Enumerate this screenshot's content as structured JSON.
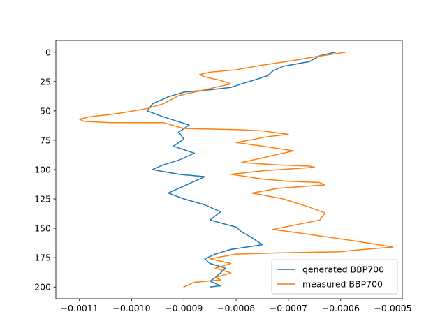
{
  "chart_data": {
    "type": "line",
    "title": "",
    "xlabel": "",
    "ylabel": "",
    "xlim": [
      -0.001145,
      -0.000482
    ],
    "ylim": [
      210,
      -10
    ],
    "y_inverted": true,
    "grid": false,
    "legend_position": "lower right",
    "x_ticks": [
      {
        "value": -0.0011,
        "label": "−0.0011"
      },
      {
        "value": -0.001,
        "label": "−0.0010"
      },
      {
        "value": -0.0009,
        "label": "−0.0009"
      },
      {
        "value": -0.0008,
        "label": "−0.0008"
      },
      {
        "value": -0.0007,
        "label": "−0.0007"
      },
      {
        "value": -0.0006,
        "label": "−0.0006"
      },
      {
        "value": -0.0005,
        "label": "−0.0005"
      }
    ],
    "y_ticks": [
      {
        "value": 0,
        "label": "0"
      },
      {
        "value": 25,
        "label": "25"
      },
      {
        "value": 50,
        "label": "50"
      },
      {
        "value": 75,
        "label": "75"
      },
      {
        "value": 100,
        "label": "100"
      },
      {
        "value": 125,
        "label": "125"
      },
      {
        "value": 150,
        "label": "150"
      },
      {
        "value": 175,
        "label": "175"
      },
      {
        "value": 200,
        "label": "200"
      }
    ],
    "series": [
      {
        "name": "generated BBP700",
        "color": "#1f77b4",
        "x": [
          -0.00061,
          -0.00064,
          -0.00066,
          -0.00071,
          -0.00073,
          -0.00074,
          -0.00076,
          -0.00079,
          -0.00081,
          -0.00085,
          -0.0009,
          -0.00093,
          -0.00096,
          -0.00097,
          -0.00094,
          -0.00089,
          -0.00091,
          -0.0009,
          -0.00092,
          -0.00088,
          -0.00091,
          -0.00094,
          -0.00096,
          -0.00091,
          -0.00086,
          -0.00089,
          -0.00093,
          -0.0009,
          -0.00086,
          -0.00083,
          -0.00085,
          -0.0008,
          -0.00079,
          -0.00077,
          -0.00075,
          -0.00081,
          -0.00084,
          -0.00086,
          -0.00085,
          -0.00082,
          -0.00083,
          -0.00084,
          -0.00085,
          -0.00084,
          -0.00083,
          -0.00085
        ],
        "y": [
          0,
          3,
          8,
          12,
          16,
          20,
          23,
          27,
          30,
          32,
          34,
          38,
          44,
          50,
          55,
          62,
          68,
          74,
          80,
          86,
          92,
          96,
          100,
          104,
          106,
          112,
          120,
          125,
          130,
          136,
          143,
          149,
          153,
          158,
          164,
          168,
          172,
          176,
          180,
          184,
          188,
          192,
          195,
          197,
          199,
          200
        ]
      },
      {
        "name": "measured BBP700",
        "color": "#ff7f0e",
        "x": [
          -0.00059,
          -0.00065,
          -0.00069,
          -0.00075,
          -0.0008,
          -0.00085,
          -0.00087,
          -0.00086,
          -0.00083,
          -0.00081,
          -0.00086,
          -0.00091,
          -0.00094,
          -0.00097,
          -0.00101,
          -0.00104,
          -0.00108,
          -0.0011,
          -0.00109,
          -0.00104,
          -0.00094,
          -0.0009,
          -0.0008,
          -0.00075,
          -0.0007,
          -0.00074,
          -0.0008,
          -0.00075,
          -0.00069,
          -0.00073,
          -0.00079,
          -0.00072,
          -0.00066,
          -0.00065,
          -0.00075,
          -0.00081,
          -0.00075,
          -0.0007,
          -0.00064,
          -0.00063,
          -0.00072,
          -0.00077,
          -0.00071,
          -0.00066,
          -0.00063,
          -0.00064,
          -0.00073,
          -0.00068,
          -0.00057,
          -0.0005,
          -0.00058,
          -0.0006,
          -0.00072,
          -0.0008,
          -0.00085,
          -0.00081,
          -0.00084,
          -0.00081,
          -0.00084,
          -0.00083,
          -0.00088,
          -0.0009
        ],
        "y": [
          0,
          4,
          7,
          11,
          15,
          17,
          19,
          21,
          24,
          27,
          32,
          37,
          44,
          48,
          51,
          53,
          55,
          57,
          59,
          60,
          60,
          65,
          66,
          67,
          70,
          72,
          77,
          80,
          84,
          88,
          94,
          96,
          97,
          98,
          101,
          104,
          108,
          110,
          111,
          113,
          116,
          120,
          125,
          132,
          137,
          143,
          151,
          154,
          161,
          166,
          169,
          170,
          171,
          172,
          176,
          180,
          184,
          188,
          192,
          194,
          196,
          200
        ]
      }
    ]
  }
}
